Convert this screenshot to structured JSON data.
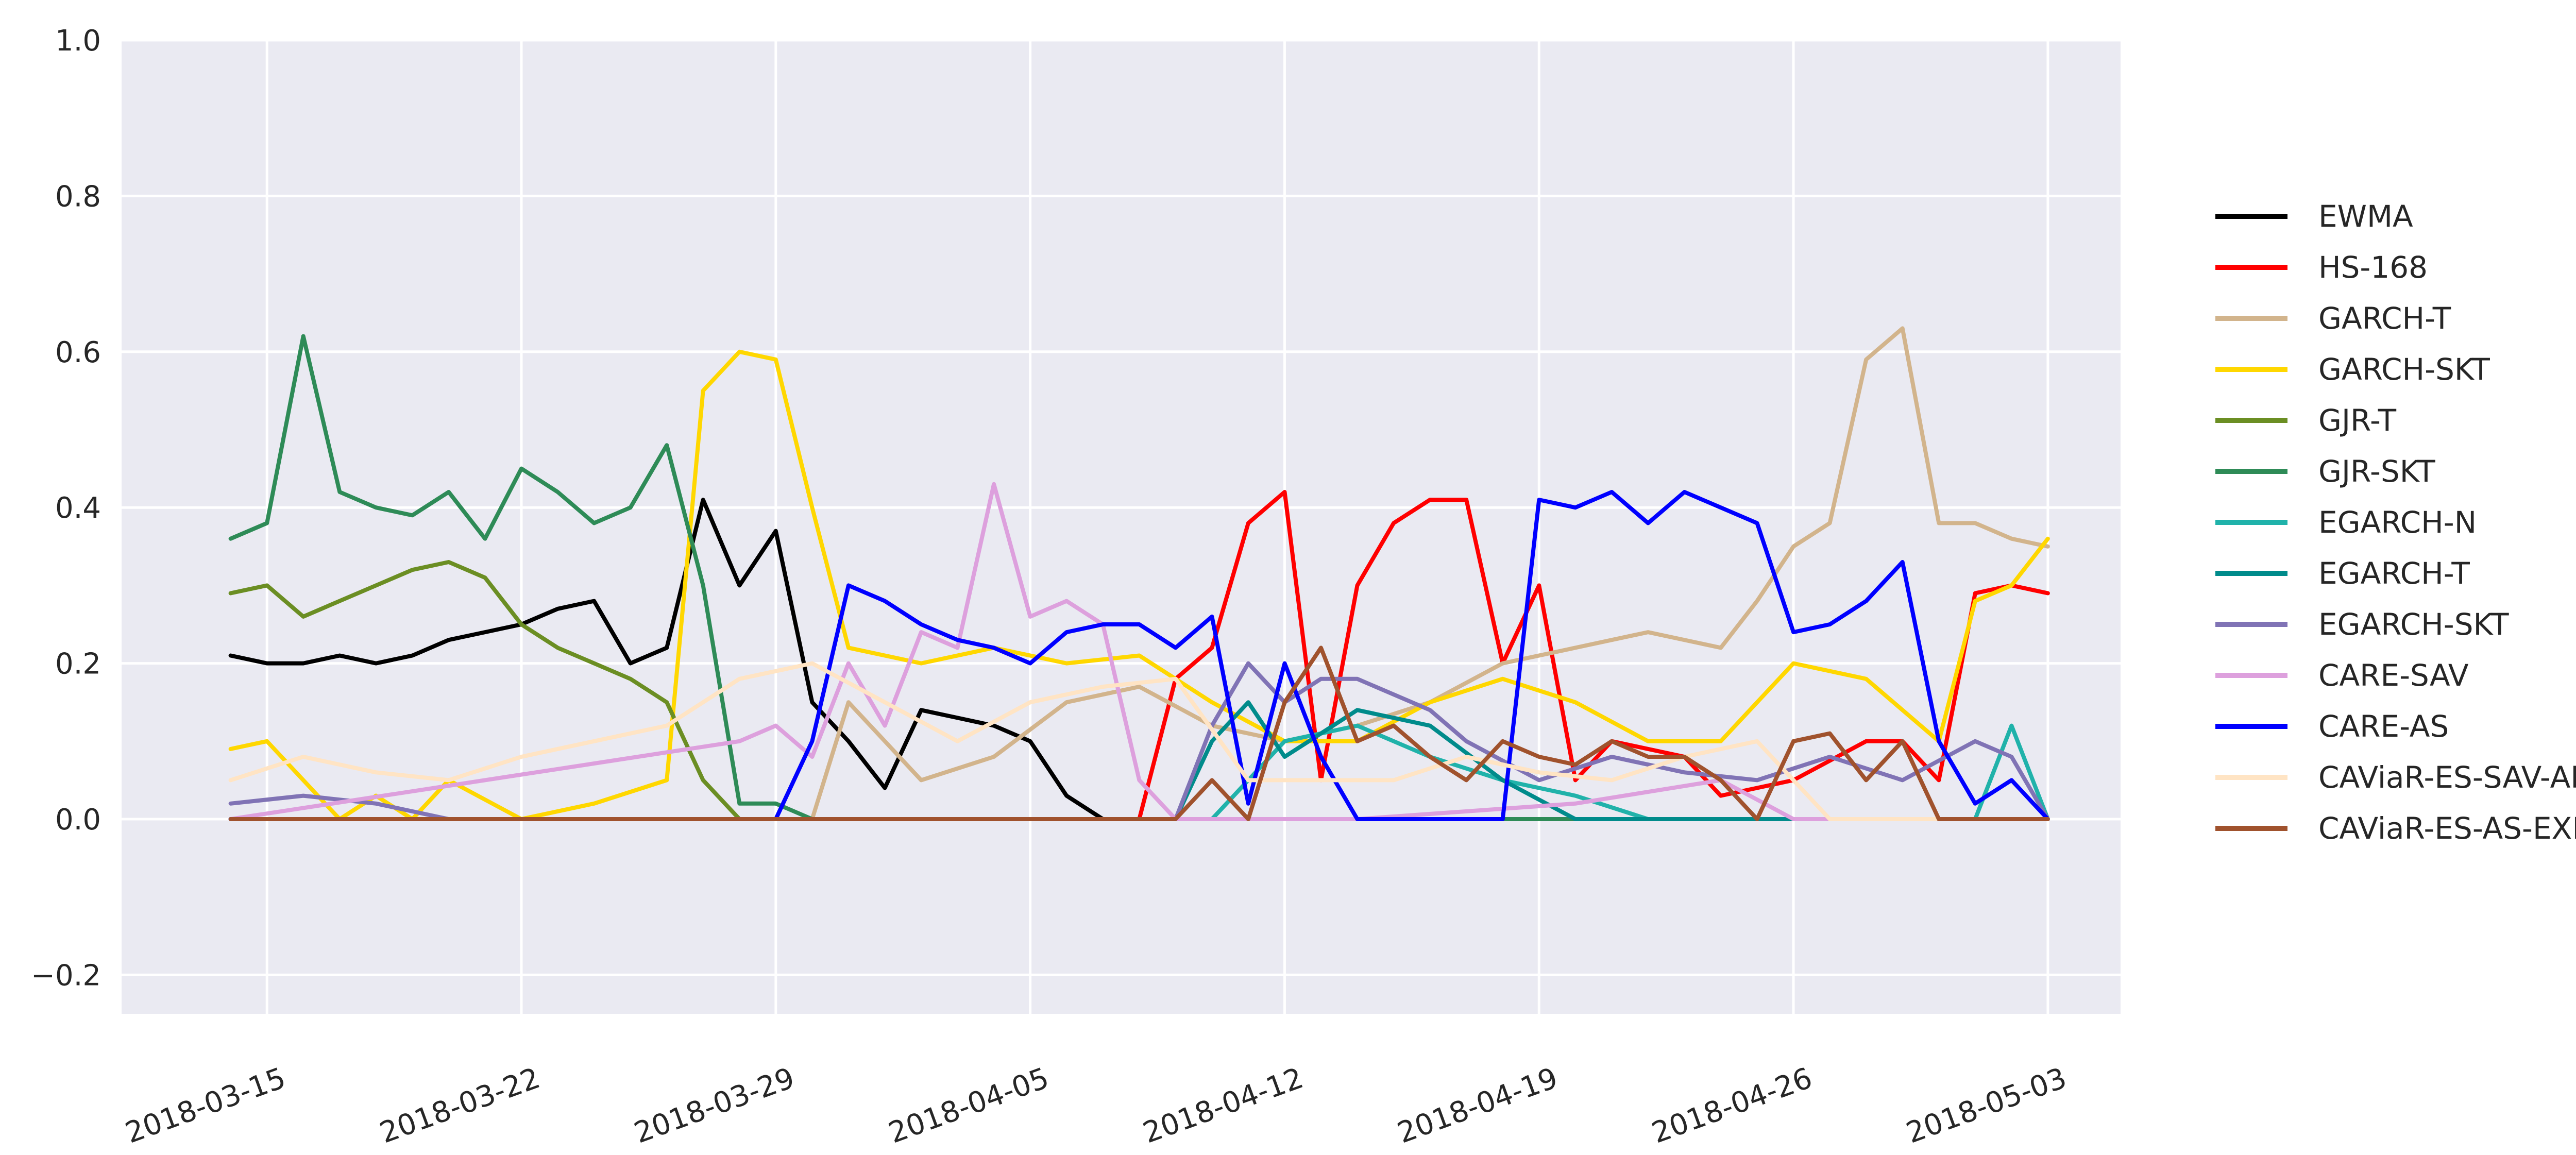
{
  "chart_data": {
    "type": "line",
    "title": "",
    "xlabel": "",
    "ylabel": "",
    "ylim": [
      -0.25,
      1.0
    ],
    "xlim": [
      "2018-03-11",
      "2018-05-05"
    ],
    "grid": true,
    "legend_position": "right",
    "background": "#EAEAF2",
    "yticks": [
      "−0.2",
      "0.0",
      "0.2",
      "0.4",
      "0.6",
      "0.8",
      "1.0"
    ],
    "ytick_values": [
      -0.2,
      0.0,
      0.2,
      0.4,
      0.6,
      0.8,
      1.0
    ],
    "xticks": [
      "2018-03-15",
      "2018-03-22",
      "2018-03-29",
      "2018-04-05",
      "2018-04-12",
      "2018-04-19",
      "2018-04-26",
      "2018-05-03"
    ],
    "series": [
      {
        "name": "EWMA",
        "color": "#000000",
        "x": [
          "2018-03-14",
          "2018-03-15",
          "2018-03-16",
          "2018-03-17",
          "2018-03-18",
          "2018-03-19",
          "2018-03-20",
          "2018-03-21",
          "2018-03-22",
          "2018-03-23",
          "2018-03-24",
          "2018-03-25",
          "2018-03-26",
          "2018-03-27",
          "2018-03-28",
          "2018-03-29",
          "2018-03-30",
          "2018-03-31",
          "2018-04-01",
          "2018-04-02",
          "2018-04-03",
          "2018-04-04",
          "2018-04-05",
          "2018-04-06",
          "2018-04-07",
          "2018-04-14",
          "2018-04-21",
          "2018-04-28",
          "2018-05-03"
        ],
        "y": [
          0.21,
          0.2,
          0.2,
          0.21,
          0.2,
          0.21,
          0.23,
          0.24,
          0.25,
          0.27,
          0.28,
          0.2,
          0.22,
          0.41,
          0.3,
          0.37,
          0.15,
          0.1,
          0.04,
          0.14,
          0.13,
          0.12,
          0.1,
          0.03,
          0.0,
          0.0,
          0.0,
          0.0,
          0.0
        ]
      },
      {
        "name": "HS-168",
        "color": "#FF0000",
        "x": [
          "2018-03-14",
          "2018-04-08",
          "2018-04-09",
          "2018-04-10",
          "2018-04-11",
          "2018-04-12",
          "2018-04-13",
          "2018-04-14",
          "2018-04-15",
          "2018-04-16",
          "2018-04-17",
          "2018-04-18",
          "2018-04-19",
          "2018-04-20",
          "2018-04-21",
          "2018-04-23",
          "2018-04-24",
          "2018-04-26",
          "2018-04-28",
          "2018-04-29",
          "2018-04-30",
          "2018-05-01",
          "2018-05-02",
          "2018-05-03"
        ],
        "y": [
          0.0,
          0.0,
          0.18,
          0.22,
          0.38,
          0.42,
          0.05,
          0.3,
          0.38,
          0.41,
          0.41,
          0.2,
          0.3,
          0.05,
          0.1,
          0.08,
          0.03,
          0.05,
          0.1,
          0.1,
          0.05,
          0.29,
          0.3,
          0.29
        ]
      },
      {
        "name": "GARCH-T",
        "color": "#D2B48C",
        "x": [
          "2018-03-14",
          "2018-03-30",
          "2018-03-31",
          "2018-04-01",
          "2018-04-02",
          "2018-04-04",
          "2018-04-06",
          "2018-04-08",
          "2018-04-10",
          "2018-04-12",
          "2018-04-14",
          "2018-04-16",
          "2018-04-18",
          "2018-04-20",
          "2018-04-22",
          "2018-04-24",
          "2018-04-25",
          "2018-04-26",
          "2018-04-27",
          "2018-04-28",
          "2018-04-29",
          "2018-04-30",
          "2018-05-01",
          "2018-05-02",
          "2018-05-03"
        ],
        "y": [
          0.0,
          0.0,
          0.15,
          0.1,
          0.05,
          0.08,
          0.15,
          0.17,
          0.12,
          0.1,
          0.12,
          0.15,
          0.2,
          0.22,
          0.24,
          0.22,
          0.28,
          0.35,
          0.38,
          0.59,
          0.63,
          0.38,
          0.38,
          0.36,
          0.35
        ]
      },
      {
        "name": "GARCH-SKT",
        "color": "#FFD700",
        "x": [
          "2018-03-14",
          "2018-03-15",
          "2018-03-16",
          "2018-03-17",
          "2018-03-18",
          "2018-03-19",
          "2018-03-20",
          "2018-03-22",
          "2018-03-24",
          "2018-03-26",
          "2018-03-27",
          "2018-03-28",
          "2018-03-29",
          "2018-03-30",
          "2018-03-31",
          "2018-04-02",
          "2018-04-04",
          "2018-04-06",
          "2018-04-08",
          "2018-04-10",
          "2018-04-12",
          "2018-04-14",
          "2018-04-16",
          "2018-04-18",
          "2018-04-20",
          "2018-04-22",
          "2018-04-24",
          "2018-04-26",
          "2018-04-28",
          "2018-04-30",
          "2018-05-01",
          "2018-05-02",
          "2018-05-03"
        ],
        "y": [
          0.09,
          0.1,
          0.05,
          0.0,
          0.03,
          0.0,
          0.05,
          0.0,
          0.02,
          0.05,
          0.55,
          0.6,
          0.59,
          0.4,
          0.22,
          0.2,
          0.22,
          0.2,
          0.21,
          0.15,
          0.1,
          0.1,
          0.15,
          0.18,
          0.15,
          0.1,
          0.1,
          0.2,
          0.18,
          0.1,
          0.28,
          0.3,
          0.36
        ]
      },
      {
        "name": "GJR-T",
        "color": "#6B8E23",
        "x": [
          "2018-03-14",
          "2018-03-15",
          "2018-03-16",
          "2018-03-17",
          "2018-03-18",
          "2018-03-19",
          "2018-03-20",
          "2018-03-21",
          "2018-03-22",
          "2018-03-23",
          "2018-03-24",
          "2018-03-25",
          "2018-03-26",
          "2018-03-27",
          "2018-03-28",
          "2018-04-10",
          "2018-05-03"
        ],
        "y": [
          0.29,
          0.3,
          0.26,
          0.28,
          0.3,
          0.32,
          0.33,
          0.31,
          0.25,
          0.22,
          0.2,
          0.18,
          0.15,
          0.05,
          0.0,
          0.0,
          0.0
        ]
      },
      {
        "name": "GJR-SKT",
        "color": "#2E8B57",
        "x": [
          "2018-03-14",
          "2018-03-15",
          "2018-03-16",
          "2018-03-17",
          "2018-03-18",
          "2018-03-19",
          "2018-03-20",
          "2018-03-21",
          "2018-03-22",
          "2018-03-23",
          "2018-03-24",
          "2018-03-25",
          "2018-03-26",
          "2018-03-27",
          "2018-03-28",
          "2018-03-29",
          "2018-03-30",
          "2018-04-10",
          "2018-05-03"
        ],
        "y": [
          0.36,
          0.38,
          0.62,
          0.42,
          0.4,
          0.39,
          0.42,
          0.36,
          0.45,
          0.42,
          0.38,
          0.4,
          0.48,
          0.3,
          0.02,
          0.02,
          0.0,
          0.0,
          0.0
        ]
      },
      {
        "name": "EGARCH-N",
        "color": "#20B2AA",
        "x": [
          "2018-03-14",
          "2018-04-10",
          "2018-04-12",
          "2018-04-14",
          "2018-04-16",
          "2018-04-18",
          "2018-04-20",
          "2018-04-22",
          "2018-05-01",
          "2018-05-02",
          "2018-05-03"
        ],
        "y": [
          0.0,
          0.0,
          0.1,
          0.12,
          0.08,
          0.05,
          0.03,
          0.0,
          0.0,
          0.12,
          0.0
        ]
      },
      {
        "name": "EGARCH-T",
        "color": "#008B8B",
        "x": [
          "2018-03-14",
          "2018-04-09",
          "2018-04-10",
          "2018-04-11",
          "2018-04-12",
          "2018-04-14",
          "2018-04-16",
          "2018-04-18",
          "2018-04-20",
          "2018-05-03"
        ],
        "y": [
          0.0,
          0.0,
          0.1,
          0.15,
          0.08,
          0.14,
          0.12,
          0.05,
          0.0,
          0.0
        ]
      },
      {
        "name": "EGARCH-SKT",
        "color": "#8073B5",
        "x": [
          "2018-03-14",
          "2018-03-16",
          "2018-03-18",
          "2018-03-20",
          "2018-04-09",
          "2018-04-10",
          "2018-04-11",
          "2018-04-12",
          "2018-04-13",
          "2018-04-14",
          "2018-04-15",
          "2018-04-16",
          "2018-04-17",
          "2018-04-19",
          "2018-04-21",
          "2018-04-23",
          "2018-04-25",
          "2018-04-27",
          "2018-04-29",
          "2018-05-01",
          "2018-05-02",
          "2018-05-03"
        ],
        "y": [
          0.02,
          0.03,
          0.02,
          0.0,
          0.0,
          0.12,
          0.2,
          0.15,
          0.18,
          0.18,
          0.16,
          0.14,
          0.1,
          0.05,
          0.08,
          0.06,
          0.05,
          0.08,
          0.05,
          0.1,
          0.08,
          0.0
        ]
      },
      {
        "name": "CARE-SAV",
        "color": "#DDA0DD",
        "x": [
          "2018-03-14",
          "2018-03-28",
          "2018-03-29",
          "2018-03-30",
          "2018-03-31",
          "2018-04-01",
          "2018-04-02",
          "2018-04-03",
          "2018-04-04",
          "2018-04-05",
          "2018-04-06",
          "2018-04-07",
          "2018-04-08",
          "2018-04-09",
          "2018-04-10",
          "2018-04-14",
          "2018-04-20",
          "2018-04-24",
          "2018-04-26",
          "2018-05-03"
        ],
        "y": [
          0.0,
          0.1,
          0.12,
          0.08,
          0.2,
          0.12,
          0.24,
          0.22,
          0.43,
          0.26,
          0.28,
          0.25,
          0.05,
          0.0,
          0.0,
          0.0,
          0.02,
          0.05,
          0.0,
          0.0
        ]
      },
      {
        "name": "CARE-AS",
        "color": "#0000FF",
        "x": [
          "2018-03-14",
          "2018-03-29",
          "2018-03-30",
          "2018-03-31",
          "2018-04-01",
          "2018-04-02",
          "2018-04-03",
          "2018-04-04",
          "2018-04-05",
          "2018-04-06",
          "2018-04-07",
          "2018-04-08",
          "2018-04-09",
          "2018-04-10",
          "2018-04-11",
          "2018-04-12",
          "2018-04-13",
          "2018-04-14",
          "2018-04-15",
          "2018-04-16",
          "2018-04-17",
          "2018-04-18",
          "2018-04-19",
          "2018-04-20",
          "2018-04-21",
          "2018-04-22",
          "2018-04-23",
          "2018-04-24",
          "2018-04-25",
          "2018-04-26",
          "2018-04-27",
          "2018-04-28",
          "2018-04-29",
          "2018-04-30",
          "2018-05-01",
          "2018-05-02",
          "2018-05-03"
        ],
        "y": [
          0.0,
          0.0,
          0.1,
          0.3,
          0.28,
          0.25,
          0.23,
          0.22,
          0.2,
          0.24,
          0.25,
          0.25,
          0.22,
          0.26,
          0.02,
          0.2,
          0.08,
          0.0,
          0.0,
          0.0,
          0.0,
          0.0,
          0.41,
          0.4,
          0.42,
          0.38,
          0.42,
          0.4,
          0.38,
          0.24,
          0.25,
          0.28,
          0.33,
          0.1,
          0.02,
          0.05,
          0.0
        ]
      },
      {
        "name": "CAViaR-ES-SAV-AR",
        "color": "#FFE4C4",
        "x": [
          "2018-03-14",
          "2018-03-16",
          "2018-03-18",
          "2018-03-20",
          "2018-03-22",
          "2018-03-24",
          "2018-03-26",
          "2018-03-28",
          "2018-03-30",
          "2018-04-01",
          "2018-04-03",
          "2018-04-05",
          "2018-04-07",
          "2018-04-09",
          "2018-04-11",
          "2018-04-13",
          "2018-04-15",
          "2018-04-17",
          "2018-04-19",
          "2018-04-21",
          "2018-04-23",
          "2018-04-25",
          "2018-04-27",
          "2018-04-29",
          "2018-05-01",
          "2018-05-03"
        ],
        "y": [
          0.05,
          0.08,
          0.06,
          0.05,
          0.08,
          0.1,
          0.12,
          0.18,
          0.2,
          0.15,
          0.1,
          0.15,
          0.17,
          0.18,
          0.05,
          0.05,
          0.05,
          0.08,
          0.06,
          0.05,
          0.08,
          0.1,
          0.0,
          0.0,
          0.0,
          0.0
        ]
      },
      {
        "name": "CAViaR-ES-AS-EXP",
        "color": "#A0522D",
        "x": [
          "2018-03-14",
          "2018-04-09",
          "2018-04-10",
          "2018-04-11",
          "2018-04-12",
          "2018-04-13",
          "2018-04-14",
          "2018-04-15",
          "2018-04-16",
          "2018-04-17",
          "2018-04-18",
          "2018-04-19",
          "2018-04-20",
          "2018-04-21",
          "2018-04-22",
          "2018-04-23",
          "2018-04-24",
          "2018-04-25",
          "2018-04-26",
          "2018-04-27",
          "2018-04-28",
          "2018-04-29",
          "2018-04-30",
          "2018-05-01",
          "2018-05-03"
        ],
        "y": [
          0.0,
          0.0,
          0.05,
          0.0,
          0.15,
          0.22,
          0.1,
          0.12,
          0.08,
          0.05,
          0.1,
          0.08,
          0.07,
          0.1,
          0.08,
          0.08,
          0.05,
          0.0,
          0.1,
          0.11,
          0.05,
          0.1,
          0.0,
          0.0,
          0.0
        ]
      }
    ]
  }
}
